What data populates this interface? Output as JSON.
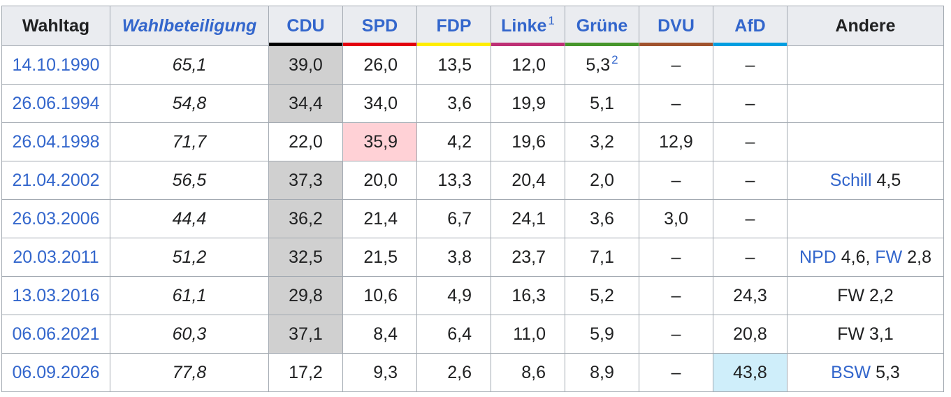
{
  "headers": {
    "date": "Wahltag",
    "turnout": "Wahlbeteiligung",
    "parties": [
      "CDU",
      "SPD",
      "FDP",
      "Linke",
      "Grüne",
      "DVU",
      "AfD"
    ],
    "linke_footnote": "1",
    "others": "Andere"
  },
  "party_colors": {
    "CDU": "#000000",
    "SPD": "#e3000f",
    "FDP": "#ffed00",
    "Linke": "#be3075",
    "Grüne": "#46962b",
    "DVU": "#a0522d",
    "AfD": "#009ee0"
  },
  "highlight_colors": {
    "grey": "#d0d0d0",
    "red": "#ffd1d6",
    "blue": "#cfeefa"
  },
  "rows": [
    {
      "date": "14.10.1990",
      "turnout": "65,1",
      "CDU": "39,0",
      "SPD": "26,0",
      "FDP": "13,5",
      "Linke": "12,0",
      "Grüne": "5,3",
      "Grüne_footnote": "2",
      "DVU": "–",
      "AfD": "–",
      "others": [],
      "highlight": {
        "party": "CDU",
        "color": "grey"
      }
    },
    {
      "date": "26.06.1994",
      "turnout": "54,8",
      "CDU": "34,4",
      "SPD": "34,0",
      "FDP": "3,6",
      "Linke": "19,9",
      "Grüne": "5,1",
      "DVU": "–",
      "AfD": "–",
      "others": [],
      "highlight": {
        "party": "CDU",
        "color": "grey"
      }
    },
    {
      "date": "26.04.1998",
      "turnout": "71,7",
      "CDU": "22,0",
      "SPD": "35,9",
      "FDP": "4,2",
      "Linke": "19,6",
      "Grüne": "3,2",
      "DVU": "12,9",
      "AfD": "–",
      "others": [],
      "highlight": {
        "party": "SPD",
        "color": "red"
      }
    },
    {
      "date": "21.04.2002",
      "turnout": "56,5",
      "CDU": "37,3",
      "SPD": "20,0",
      "FDP": "13,3",
      "Linke": "20,4",
      "Grüne": "2,0",
      "DVU": "–",
      "AfD": "–",
      "others": [
        {
          "name": "Schill",
          "value": "4,5",
          "link": true
        }
      ],
      "highlight": {
        "party": "CDU",
        "color": "grey"
      }
    },
    {
      "date": "26.03.2006",
      "turnout": "44,4",
      "CDU": "36,2",
      "SPD": "21,4",
      "FDP": "6,7",
      "Linke": "24,1",
      "Grüne": "3,6",
      "DVU": "3,0",
      "AfD": "–",
      "others": [],
      "highlight": {
        "party": "CDU",
        "color": "grey"
      }
    },
    {
      "date": "20.03.2011",
      "turnout": "51,2",
      "CDU": "32,5",
      "SPD": "21,5",
      "FDP": "3,8",
      "Linke": "23,7",
      "Grüne": "7,1",
      "DVU": "–",
      "AfD": "–",
      "others": [
        {
          "name": "NPD",
          "value": "4,6",
          "link": true
        },
        {
          "name": "FW",
          "value": "2,8",
          "link": true
        }
      ],
      "highlight": {
        "party": "CDU",
        "color": "grey"
      }
    },
    {
      "date": "13.03.2016",
      "turnout": "61,1",
      "CDU": "29,8",
      "SPD": "10,6",
      "FDP": "4,9",
      "Linke": "16,3",
      "Grüne": "5,2",
      "DVU": "–",
      "AfD": "24,3",
      "others": [
        {
          "name": "FW",
          "value": "2,2",
          "link": false
        }
      ],
      "highlight": {
        "party": "CDU",
        "color": "grey"
      }
    },
    {
      "date": "06.06.2021",
      "turnout": "60,3",
      "CDU": "37,1",
      "SPD": "8,4",
      "FDP": "6,4",
      "Linke": "11,0",
      "Grüne": "5,9",
      "DVU": "–",
      "AfD": "20,8",
      "others": [
        {
          "name": "FW",
          "value": "3,1",
          "link": false
        }
      ],
      "highlight": {
        "party": "CDU",
        "color": "grey"
      }
    },
    {
      "date": "06.09.2026",
      "turnout": "77,8",
      "CDU": "17,2",
      "SPD": "9,3",
      "FDP": "2,6",
      "Linke": "8,6",
      "Grüne": "8,9",
      "DVU": "–",
      "AfD": "43,8",
      "others": [
        {
          "name": "BSW",
          "value": "5,3",
          "link": true
        }
      ],
      "highlight": {
        "party": "AfD",
        "color": "blue"
      }
    }
  ]
}
